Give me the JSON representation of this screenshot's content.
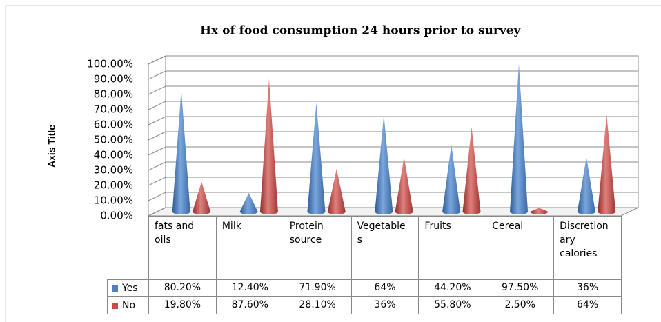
{
  "chart_data": {
    "type": "cone3d",
    "title": "Hx of food consumption 24 hours prior to survey",
    "y_label": "Axis Title",
    "categories": [
      "fats and oils",
      "Milk",
      "Protein source",
      "Vegetables",
      "Fruits",
      "Cereal",
      "Discretionary calories"
    ],
    "series": [
      {
        "name": "Yes",
        "color": "#4f81bd",
        "values": [
          80.2,
          12.4,
          71.9,
          64,
          44.2,
          97.5,
          36
        ],
        "value_labels": [
          "80.20%",
          "12.40%",
          "71.90%",
          "64%",
          "44.20%",
          "97.50%",
          "36%"
        ]
      },
      {
        "name": "No",
        "color": "#c0504d",
        "values": [
          19.8,
          87.6,
          28.1,
          36,
          55.8,
          2.5,
          64
        ],
        "value_labels": [
          "19.80%",
          "87.60%",
          "28.10%",
          "36%",
          "55.80%",
          "2.50%",
          "64%"
        ]
      }
    ],
    "ylim": [
      0,
      100
    ],
    "yticks": [
      {
        "value": 0,
        "label": "0.00%"
      },
      {
        "value": 10,
        "label": "10.00%"
      },
      {
        "value": 20,
        "label": "20.00%"
      },
      {
        "value": 30,
        "label": "30.00%"
      },
      {
        "value": 40,
        "label": "40.00%"
      },
      {
        "value": 50,
        "label": "50.00%"
      },
      {
        "value": 60,
        "label": "60.00%"
      },
      {
        "value": 70,
        "label": "70.00%"
      },
      {
        "value": 80,
        "label": "80.00%"
      },
      {
        "value": 90,
        "label": "90.00%"
      },
      {
        "value": 100,
        "label": "100.00%"
      }
    ],
    "grid": true,
    "data_table": true
  }
}
